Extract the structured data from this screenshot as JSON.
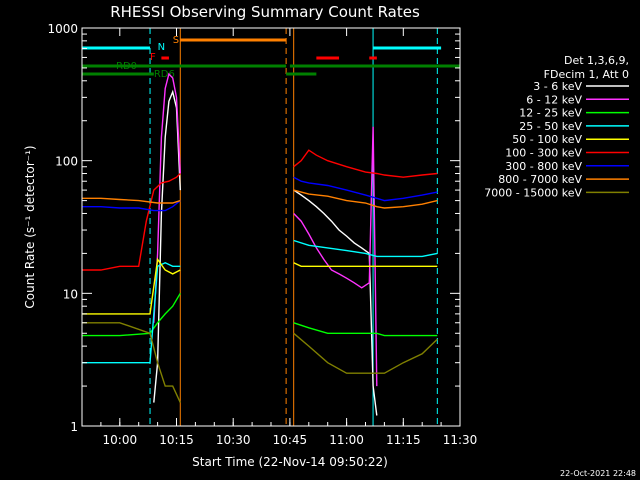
{
  "chart_data": {
    "type": "line",
    "title": "RHESSI Observing Summary Count Rates",
    "xlabel": "Start Time (22-Nov-14 09:50:22)",
    "ylabel": "Count Rate (s⁻¹ detector⁻¹)",
    "yscale": "log",
    "ylim": [
      1,
      1000
    ],
    "xlim": [
      "09:50",
      "11:30"
    ],
    "x_ticks": [
      "10:00",
      "10:15",
      "10:30",
      "10:45",
      "11:00",
      "11:15",
      "11:30"
    ],
    "y_ticks": [
      "1",
      "10",
      "100",
      "1000"
    ],
    "legend": {
      "placement": "right",
      "header": [
        "Det 1,3,6,9,",
        "FDecim 1, Att 0"
      ]
    },
    "series": [
      {
        "name": "3 - 6 keV",
        "color": "#ffffff",
        "segments": [
          {
            "x": [
              "10:09",
              "10:10",
              "10:11",
              "10:12",
              "10:13",
              "10:14",
              "10:15",
              "10:16"
            ],
            "y": [
              1.5,
              3,
              40,
              150,
              280,
              330,
              250,
              60
            ]
          },
          {
            "x": [
              "10:46",
              "10:48",
              "10:50",
              "10:52",
              "10:54",
              "10:56",
              "10:58",
              "11:00",
              "11:02",
              "11:04",
              "11:06"
            ],
            "y": [
              60,
              55,
              50,
              45,
              40,
              35,
              30,
              27,
              24,
              22,
              20
            ]
          },
          {
            "x": [
              "11:06",
              "11:07",
              "11:08"
            ],
            "y": [
              20,
              2,
              1.2
            ]
          }
        ]
      },
      {
        "name": "6 - 12 keV",
        "color": "#ff33ff",
        "segments": [
          {
            "x": [
              "10:09",
              "10:10",
              "10:11",
              "10:12",
              "10:13",
              "10:14",
              "10:15",
              "10:16"
            ],
            "y": [
              6,
              20,
              150,
              350,
              450,
              420,
              300,
              80
            ]
          },
          {
            "x": [
              "10:46",
              "10:48",
              "10:50",
              "10:52",
              "10:54",
              "10:56",
              "10:58",
              "11:00",
              "11:02",
              "11:04",
              "11:06",
              "11:07",
              "11:08"
            ],
            "y": [
              40,
              35,
              28,
              22,
              18,
              15,
              14,
              13,
              12,
              11,
              12,
              180,
              2
            ]
          }
        ]
      },
      {
        "name": "12 - 25 keV",
        "color": "#00ff00",
        "segments": [
          {
            "x": [
              "09:50",
              "10:00",
              "10:08",
              "10:10",
              "10:12",
              "10:14",
              "10:16"
            ],
            "y": [
              4.8,
              4.8,
              5,
              6,
              7,
              8,
              10
            ]
          },
          {
            "x": [
              "10:46",
              "10:50",
              "10:55",
              "11:00",
              "11:05",
              "11:08",
              "11:10",
              "11:15",
              "11:20",
              "11:24"
            ],
            "y": [
              6,
              5.5,
              5,
              5,
              5,
              5,
              4.8,
              4.8,
              4.8,
              4.8
            ]
          }
        ]
      },
      {
        "name": "25 - 50 keV",
        "color": "#00ffff",
        "segments": [
          {
            "x": [
              "09:50",
              "10:00",
              "10:08",
              "10:10",
              "10:12",
              "10:14",
              "10:16"
            ],
            "y": [
              3,
              3,
              3,
              16,
              17,
              16,
              16
            ]
          },
          {
            "x": [
              "10:46",
              "10:50",
              "10:55",
              "11:00",
              "11:05",
              "11:08",
              "11:10",
              "11:15",
              "11:20",
              "11:24"
            ],
            "y": [
              25,
              23,
              22,
              21,
              20,
              19,
              19,
              19,
              19,
              20
            ]
          }
        ]
      },
      {
        "name": "50 - 100 keV",
        "color": "#ffff00",
        "segments": [
          {
            "x": [
              "09:50",
              "10:00",
              "10:08",
              "10:10",
              "10:12",
              "10:14",
              "10:16"
            ],
            "y": [
              7,
              7,
              7,
              18,
              15,
              14,
              15
            ]
          },
          {
            "x": [
              "10:46",
              "10:48",
              "10:50",
              "10:55",
              "11:00",
              "11:05",
              "11:08",
              "11:10",
              "11:15",
              "11:20",
              "11:24"
            ],
            "y": [
              17,
              16,
              16,
              16,
              16,
              16,
              16,
              16,
              16,
              16,
              16
            ]
          }
        ]
      },
      {
        "name": "100 - 300 keV",
        "color": "#ff0000",
        "segments": [
          {
            "x": [
              "09:50",
              "09:55",
              "10:00",
              "10:05",
              "10:07",
              "10:09",
              "10:11",
              "10:13",
              "10:15",
              "10:16"
            ],
            "y": [
              15,
              15,
              16,
              16,
              35,
              60,
              68,
              70,
              75,
              80
            ]
          },
          {
            "x": [
              "10:46",
              "10:48",
              "10:50",
              "10:52",
              "10:55",
              "11:00",
              "11:05",
              "11:08",
              "11:10",
              "11:15",
              "11:20",
              "11:24"
            ],
            "y": [
              90,
              100,
              120,
              110,
              100,
              90,
              82,
              80,
              78,
              75,
              78,
              80
            ]
          }
        ]
      },
      {
        "name": "300 - 800 keV",
        "color": "#0000ff",
        "segments": [
          {
            "x": [
              "09:50",
              "09:55",
              "10:00",
              "10:05",
              "10:09",
              "10:12",
              "10:14",
              "10:16"
            ],
            "y": [
              45,
              45,
              44,
              44,
              42,
              42,
              45,
              50
            ]
          },
          {
            "x": [
              "10:46",
              "10:48",
              "10:50",
              "10:55",
              "11:00",
              "11:05",
              "11:08",
              "11:10",
              "11:15",
              "11:20",
              "11:24"
            ],
            "y": [
              75,
              70,
              68,
              65,
              60,
              55,
              52,
              50,
              52,
              55,
              58
            ]
          }
        ]
      },
      {
        "name": "800 - 7000 keV",
        "color": "#ff8000",
        "segments": [
          {
            "x": [
              "09:50",
              "09:55",
              "10:00",
              "10:05",
              "10:10",
              "10:14",
              "10:16"
            ],
            "y": [
              52,
              52,
              51,
              50,
              48,
              48,
              50
            ]
          },
          {
            "x": [
              "10:46",
              "10:48",
              "10:50",
              "10:55",
              "11:00",
              "11:05",
              "11:08",
              "11:10",
              "11:15",
              "11:20",
              "11:24"
            ],
            "y": [
              60,
              58,
              56,
              54,
              50,
              48,
              45,
              44,
              45,
              47,
              50
            ]
          }
        ]
      },
      {
        "name": "7000 - 15000 keV",
        "color": "#808000",
        "segments": [
          {
            "x": [
              "09:50",
              "10:00",
              "10:08",
              "10:10",
              "10:12",
              "10:14",
              "10:16"
            ],
            "y": [
              6,
              6,
              5,
              3,
              2,
              2,
              1.5
            ]
          },
          {
            "x": [
              "10:46",
              "10:50",
              "10:55",
              "11:00",
              "11:05",
              "11:08",
              "11:10",
              "11:15",
              "11:20",
              "11:24"
            ],
            "y": [
              5,
              4,
              3,
              2.5,
              2.5,
              2.5,
              2.5,
              3,
              3.5,
              4.5
            ]
          }
        ]
      }
    ],
    "bars": [
      {
        "label": "F",
        "color": "#ff0000",
        "intervals": [
          [
            "10:11",
            "10:13"
          ],
          [
            "10:52",
            "10:58"
          ],
          [
            "11:06",
            "11:08"
          ]
        ]
      },
      {
        "label": "N",
        "color": "#00ffff",
        "intervals": [
          [
            "09:50",
            "10:08"
          ],
          [
            "11:07",
            "11:25"
          ]
        ]
      },
      {
        "label": "S",
        "color": "#ff8000",
        "intervals": [
          [
            "10:16",
            "10:44"
          ]
        ]
      },
      {
        "label": "RD0",
        "color": "#008000",
        "intervals": [
          [
            "09:50",
            "10:44"
          ],
          [
            "10:45",
            "11:30"
          ]
        ]
      },
      {
        "label": "RD6",
        "color": "#008000",
        "intervals": [
          [
            "09:50",
            "10:09"
          ],
          [
            "10:44",
            "10:52"
          ]
        ]
      }
    ],
    "vlines": [
      {
        "t": "10:08",
        "color": "#00ffff",
        "dash": true
      },
      {
        "t": "10:16",
        "color": "#ff8000",
        "dash": false
      },
      {
        "t": "10:44",
        "color": "#ff8000",
        "dash": true
      },
      {
        "t": "10:46",
        "color": "#ff8000",
        "dash": false
      },
      {
        "t": "11:07",
        "color": "#00ffff",
        "dash": false
      },
      {
        "t": "11:24",
        "color": "#00ffff",
        "dash": true
      }
    ],
    "footer": "22-Oct-2021 22:48"
  }
}
